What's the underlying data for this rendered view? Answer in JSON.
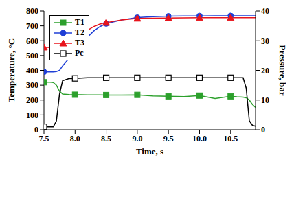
{
  "chart_data": {
    "type": "line",
    "x_label": "Time, s",
    "y_label": "Temperature, °C",
    "y2_label": "Pressure, bar",
    "x": [
      7.5,
      7.6,
      7.65,
      7.7,
      7.75,
      7.8,
      7.9,
      8.0,
      8.1,
      8.2,
      8.3,
      8.4,
      8.5,
      8.75,
      9.0,
      9.25,
      9.5,
      9.75,
      10.0,
      10.25,
      10.5,
      10.6,
      10.7,
      10.75,
      10.8,
      10.85,
      10.9
    ],
    "series": [
      {
        "name": "T1",
        "color": "#2ca02c",
        "marker": "square",
        "values": [
          320,
          320,
          318,
          300,
          260,
          240,
          237,
          236,
          236,
          235,
          235,
          235,
          234,
          233,
          235,
          228,
          225,
          223,
          230,
          210,
          225,
          222,
          220,
          215,
          200,
          170,
          150
        ]
      },
      {
        "name": "T2",
        "color": "#1f3fd6",
        "marker": "circle",
        "values": [
          390,
          390,
          390,
          392,
          400,
          430,
          480,
          530,
          580,
          625,
          665,
          695,
          715,
          740,
          756,
          762,
          765,
          766,
          767,
          768,
          768,
          768,
          768,
          768,
          768,
          768,
          768
        ]
      },
      {
        "name": "T3",
        "color": "#e8141c",
        "marker": "triangle",
        "values": [
          555,
          555,
          556,
          570,
          585,
          600,
          610,
          625,
          645,
          670,
          695,
          712,
          722,
          740,
          750,
          752,
          753,
          754,
          755,
          755,
          755,
          755,
          755,
          755,
          755,
          755,
          755
        ]
      },
      {
        "name": "Pc",
        "color": "#000000",
        "marker": "open_square",
        "axis": "y2",
        "values": [
          1,
          1,
          1,
          3,
          12,
          16.5,
          17.2,
          17.3,
          17.4,
          17.5,
          17.5,
          17.5,
          17.5,
          17.5,
          17.5,
          17.5,
          17.5,
          17.5,
          17.5,
          17.5,
          17.5,
          17.5,
          17.5,
          14,
          3,
          1.5,
          1.2
        ]
      }
    ],
    "xlim": [
      7.5,
      10.9
    ],
    "xticks": [
      {
        "value": 7.5,
        "label": "7.5"
      },
      {
        "value": 8,
        "label": "8.0"
      },
      {
        "value": 8.5,
        "label": "8.5"
      },
      {
        "value": 9,
        "label": "9.0"
      },
      {
        "value": 9.5,
        "label": "9.5"
      },
      {
        "value": 10,
        "label": "10.0"
      },
      {
        "value": 10.5,
        "label": "10.5"
      }
    ],
    "ylim": [
      0,
      800
    ],
    "yticks": [
      0,
      100,
      200,
      300,
      400,
      500,
      600,
      700,
      800
    ],
    "y2lim": [
      0,
      40
    ],
    "y2ticks": [
      0,
      10,
      20,
      30,
      40
    ],
    "legend": "upper left"
  }
}
